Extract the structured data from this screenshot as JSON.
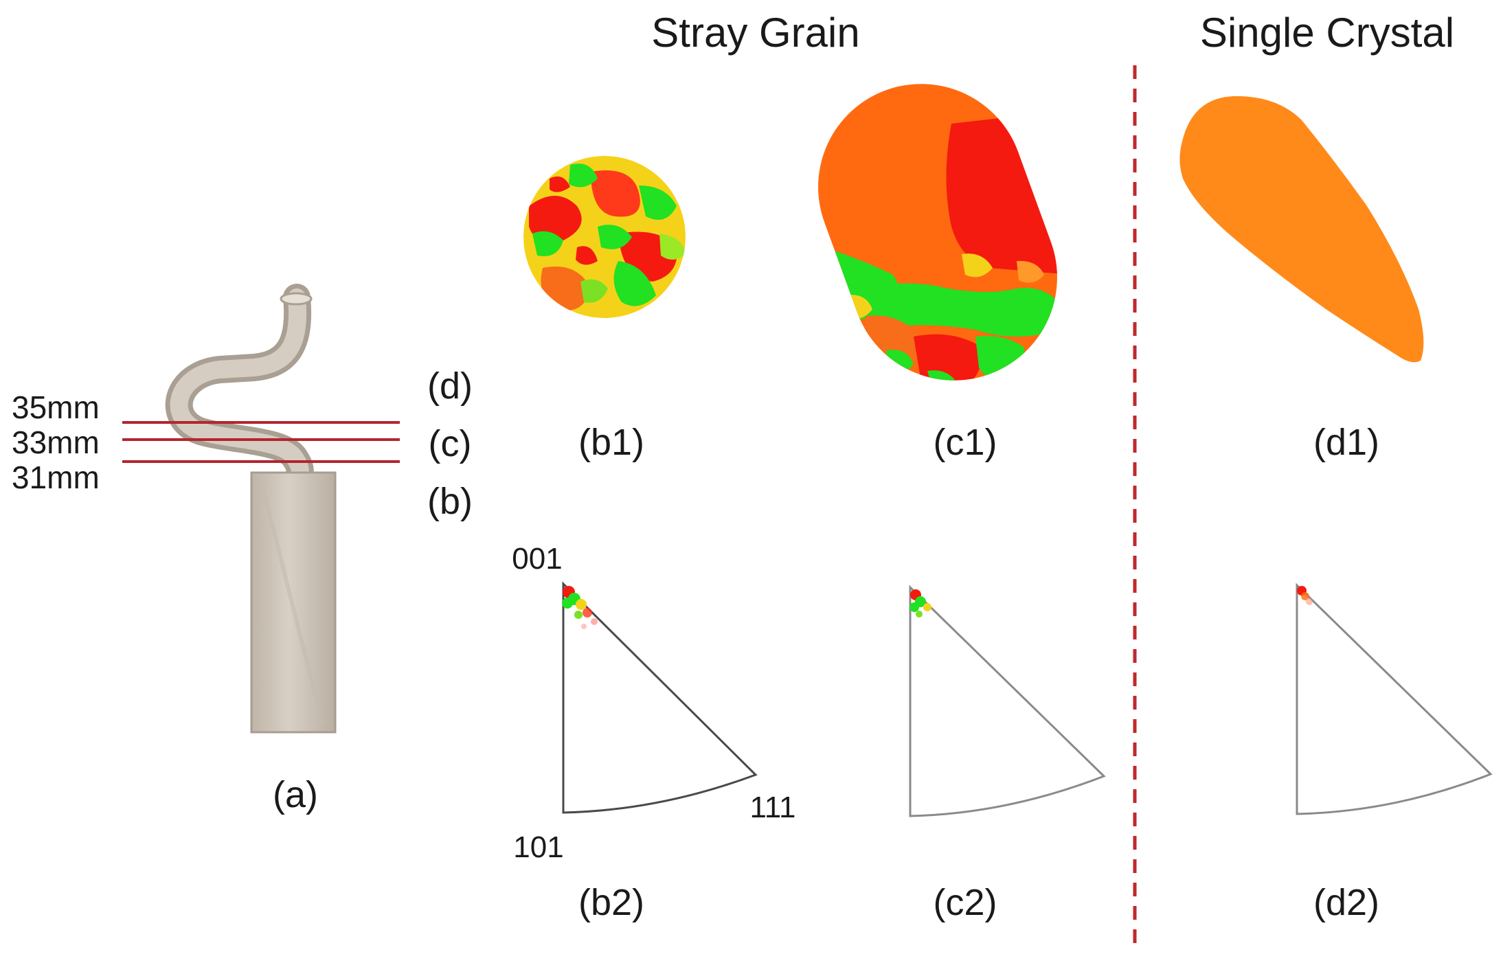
{
  "headers": {
    "stray_grain": "Stray Grain",
    "single_crystal": "Single Crystal"
  },
  "heights": {
    "h35": "35mm",
    "h33": "33mm",
    "h31": "31mm"
  },
  "section_letters": {
    "d": "(d)",
    "c": "(c)",
    "b": "(b)"
  },
  "panel_labels": {
    "a": "(a)",
    "b1": "(b1)",
    "c1": "(c1)",
    "d1": "(d1)",
    "b2": "(b2)",
    "c2": "(c2)",
    "d2": "(d2)"
  },
  "ipf_corners": {
    "c001": "001",
    "c101": "101",
    "c111": "111"
  },
  "colors": {
    "section_line": "#b3262e",
    "divider": "#c0282d",
    "orange": "#ff6a10",
    "orange_single": "#ff8a1a",
    "red": "#f41a10",
    "green": "#22e022",
    "yellow": "#f5d21a",
    "casting": "#cfc6ba"
  }
}
